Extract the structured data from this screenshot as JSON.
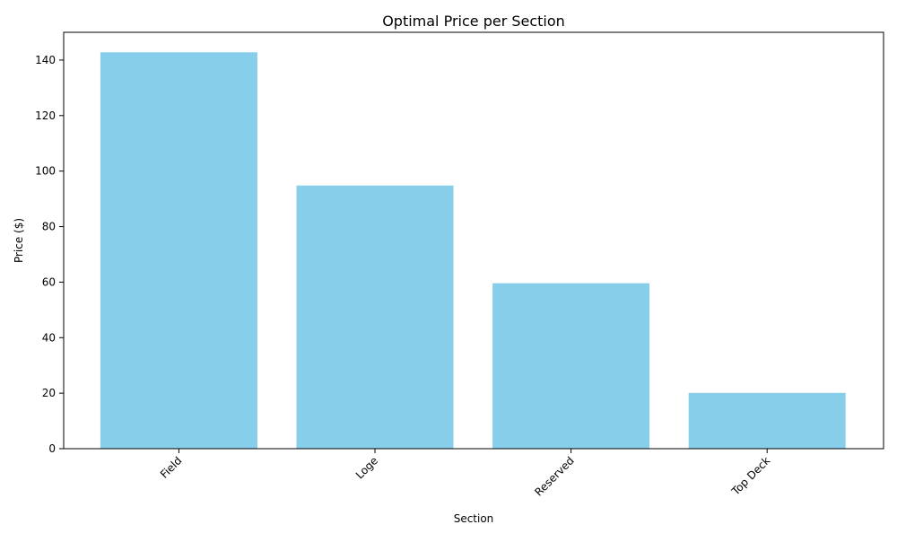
{
  "chart_data": {
    "type": "bar",
    "title": "Optimal Price per Section",
    "xlabel": "Section",
    "ylabel": "Price ($)",
    "categories": [
      "Field",
      "Loge",
      "Reserved",
      "Top Deck"
    ],
    "values": [
      142.8,
      94.8,
      59.6,
      20.1
    ],
    "ylim": [
      0,
      150
    ],
    "yticks": [
      0,
      20,
      40,
      60,
      80,
      100,
      120,
      140
    ],
    "bar_color": "#87ceeb",
    "grid": false,
    "legend": "none"
  }
}
